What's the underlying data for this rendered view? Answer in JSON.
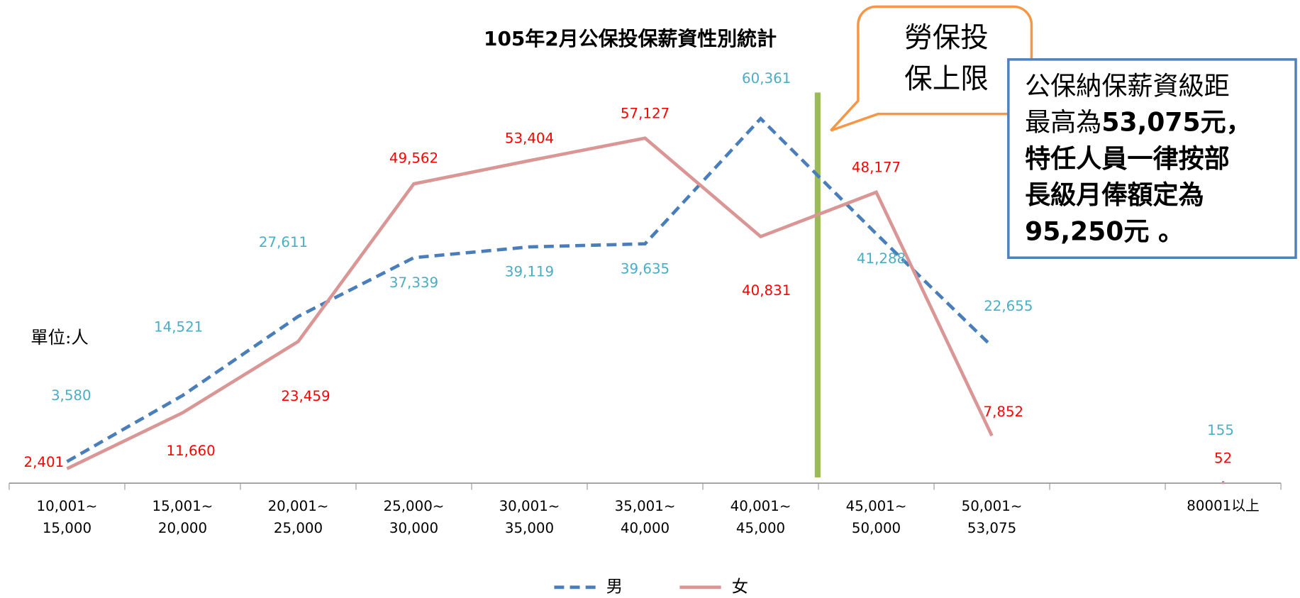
{
  "chart_data": {
    "type": "line",
    "title": "105年2月公保投保薪資性別統計",
    "categories": [
      "10,001~15,000",
      "15,001~20,000",
      "20,001~25,000",
      "25,000~30,000",
      "30,001~35,000",
      "35,001~40,000",
      "40,001~45,000",
      "45,001~50,000",
      "50,001~53,075",
      null,
      "80001以上"
    ],
    "series": [
      {
        "name": "男",
        "color": "#4a7ebb",
        "label_color": "#4bacc6",
        "dashed": true,
        "values": [
          3580,
          14521,
          27611,
          37339,
          39119,
          39635,
          60361,
          41288,
          22655,
          null,
          155
        ],
        "value_labels": [
          "3,580",
          "14,521",
          "27,611",
          "37,339",
          "39,119",
          "39,635",
          "60,361",
          "41,288",
          "22,655",
          null,
          "155"
        ]
      },
      {
        "name": "女",
        "color": "#d99694",
        "label_color": "#ff0000",
        "dashed": false,
        "values": [
          2401,
          11660,
          23459,
          49562,
          53404,
          57127,
          40831,
          48177,
          7852,
          null,
          52
        ],
        "value_labels": [
          "2,401",
          "11,660",
          "23,459",
          "49,562",
          "53,404",
          "57,127",
          "40,831",
          "48,177",
          "7,852",
          null,
          "52"
        ]
      }
    ],
    "ylim": [
      0,
      80000
    ],
    "unit_label": "單位:人",
    "callout": {
      "lines": [
        "勞保投",
        "保上限"
      ]
    },
    "note_box": {
      "lines": [
        [
          {
            "text": "公保納保薪資級距",
            "bold": false
          }
        ],
        [
          {
            "text": "最高為",
            "bold": false
          },
          {
            "text": "53,075元，",
            "bold": true
          }
        ],
        [
          {
            "text": "特任人員一律按部",
            "bold": true
          }
        ],
        [
          {
            "text": "長級月俸額定為",
            "bold": true
          }
        ],
        [
          {
            "text": "95,250元 。",
            "bold": true
          }
        ]
      ]
    }
  }
}
